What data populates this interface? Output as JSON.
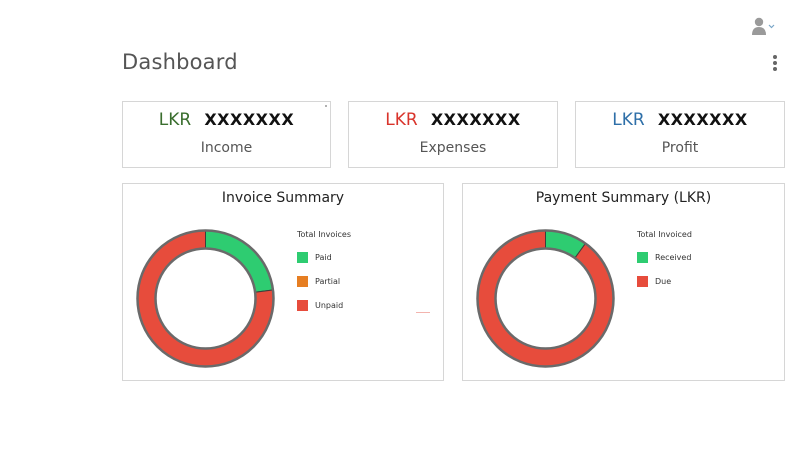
{
  "header": {
    "title": "Dashboard",
    "user_icon": "user-icon",
    "more_icon": "kebab-menu-icon"
  },
  "stats": [
    {
      "currency": "LKR",
      "amount": "XXXXXXX",
      "label": "Income",
      "color": "#3a6e2e"
    },
    {
      "currency": "LKR",
      "amount": "XXXXXXX",
      "label": "Expenses",
      "color": "#d9342b"
    },
    {
      "currency": "LKR",
      "amount": "XXXXXXX",
      "label": "Profit",
      "color": "#2e6fa8"
    }
  ],
  "chart_data": [
    {
      "type": "pie",
      "title": "Invoice Summary",
      "legend_title": "Total Invoices",
      "legend_position": "right",
      "categories": [
        "Paid",
        "Partial",
        "Unpaid"
      ],
      "values": [
        23,
        0,
        77
      ],
      "colors": [
        "#2ecc71",
        "#e67e22",
        "#e74c3c"
      ]
    },
    {
      "type": "pie",
      "title": "Payment Summary (LKR)",
      "legend_title": "Total Invoiced",
      "legend_position": "right",
      "categories": [
        "Received",
        "Due"
      ],
      "values": [
        10,
        90
      ],
      "colors": [
        "#2ecc71",
        "#e74c3c"
      ]
    }
  ]
}
